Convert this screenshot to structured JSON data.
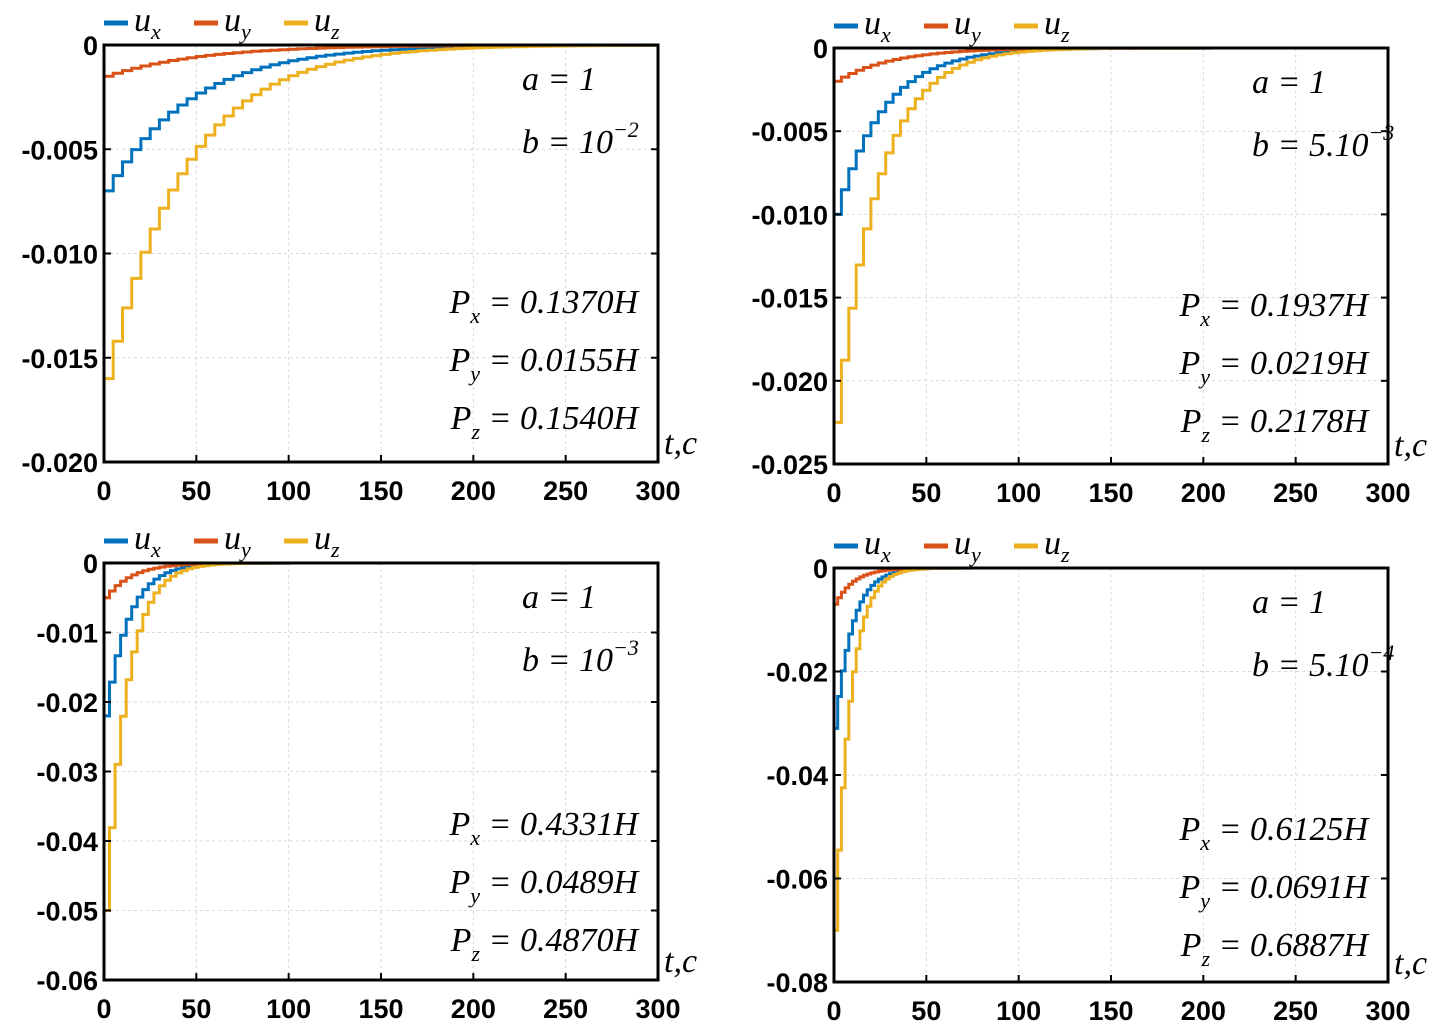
{
  "chart_data": [
    {
      "type": "line",
      "step": true,
      "xlabel": "t,c",
      "ylabel": "",
      "xlim": [
        0,
        300
      ],
      "ylim": [
        -0.02,
        0
      ],
      "x_ticks": [
        "0",
        "50",
        "100",
        "150",
        "200",
        "250",
        "300"
      ],
      "y_ticks": [
        "0",
        "-0.005",
        "-0.010",
        "-0.015",
        "-0.020"
      ],
      "y_tick_values": [
        0,
        -0.005,
        -0.01,
        -0.015,
        -0.02
      ],
      "grid": true,
      "legend_position": "top",
      "legend": [
        {
          "symbol": "u",
          "sub": "x",
          "color": "#0072BD"
        },
        {
          "symbol": "u",
          "sub": "y",
          "color": "#D95319"
        },
        {
          "symbol": "u",
          "sub": "z",
          "color": "#EDB120"
        }
      ],
      "params": {
        "a": "a = 1",
        "b_main": "b = 10",
        "b_exp": "−2"
      },
      "annotations": [
        {
          "main": "P",
          "sub": "x",
          "rest": " = 0.1370H"
        },
        {
          "main": "P",
          "sub": "y",
          "rest": " = 0.0155H"
        },
        {
          "main": "P",
          "sub": "z",
          "rest": " = 0.1540H"
        }
      ],
      "series": [
        {
          "name": "u_x",
          "color": "#0072BD",
          "x0": 0,
          "y0": -0.007,
          "tau": 45,
          "dt": 5
        },
        {
          "name": "u_y",
          "color": "#D95319",
          "x0": 0,
          "y0": -0.0015,
          "tau": 50,
          "dt": 5
        },
        {
          "name": "u_z",
          "color": "#EDB120",
          "x0": 0,
          "y0": -0.016,
          "tau": 42,
          "dt": 5
        }
      ]
    },
    {
      "type": "line",
      "step": true,
      "xlabel": "t,c",
      "ylabel": "",
      "xlim": [
        0,
        300
      ],
      "ylim": [
        -0.025,
        0
      ],
      "x_ticks": [
        "0",
        "50",
        "100",
        "150",
        "200",
        "250",
        "300"
      ],
      "y_ticks": [
        "0",
        "-0.005",
        "-0.010",
        "-0.015",
        "-0.020",
        "-0.025"
      ],
      "y_tick_values": [
        0,
        -0.005,
        -0.01,
        -0.015,
        -0.02,
        -0.025
      ],
      "grid": true,
      "legend_position": "top",
      "legend": [
        {
          "symbol": "u",
          "sub": "x",
          "color": "#0072BD"
        },
        {
          "symbol": "u",
          "sub": "y",
          "color": "#D95319"
        },
        {
          "symbol": "u",
          "sub": "z",
          "color": "#EDB120"
        }
      ],
      "params": {
        "a": "a = 1",
        "b_main": "b = 5.10",
        "b_exp": "−3"
      },
      "annotations": [
        {
          "main": "P",
          "sub": "x",
          "rest": " = 0.1937H"
        },
        {
          "main": "P",
          "sub": "y",
          "rest": " = 0.0219H"
        },
        {
          "main": "P",
          "sub": "z",
          "rest": " = 0.2178H"
        }
      ],
      "series": [
        {
          "name": "u_x",
          "color": "#0072BD",
          "x0": 0,
          "y0": -0.01,
          "tau": 25,
          "dt": 4
        },
        {
          "name": "u_y",
          "color": "#D95319",
          "x0": 0,
          "y0": -0.002,
          "tau": 30,
          "dt": 4
        },
        {
          "name": "u_z",
          "color": "#EDB120",
          "x0": 0,
          "y0": -0.0225,
          "tau": 22,
          "dt": 4
        }
      ]
    },
    {
      "type": "line",
      "step": true,
      "xlabel": "t,c",
      "ylabel": "",
      "xlim": [
        0,
        300
      ],
      "ylim": [
        -0.06,
        0
      ],
      "x_ticks": [
        "0",
        "50",
        "100",
        "150",
        "200",
        "250",
        "300"
      ],
      "y_ticks": [
        "0",
        "-0.01",
        "-0.02",
        "-0.03",
        "-0.04",
        "-0.05",
        "-0.06"
      ],
      "y_tick_values": [
        0,
        -0.01,
        -0.02,
        -0.03,
        -0.04,
        -0.05,
        -0.06
      ],
      "grid": true,
      "legend_position": "top",
      "legend": [
        {
          "symbol": "u",
          "sub": "x",
          "color": "#0072BD"
        },
        {
          "symbol": "u",
          "sub": "y",
          "color": "#D95319"
        },
        {
          "symbol": "u",
          "sub": "z",
          "color": "#EDB120"
        }
      ],
      "params": {
        "a": "a = 1",
        "b_main": "b = 10",
        "b_exp": "−3"
      },
      "annotations": [
        {
          "main": "P",
          "sub": "x",
          "rest": " = 0.4331H"
        },
        {
          "main": "P",
          "sub": "y",
          "rest": " = 0.0489H"
        },
        {
          "main": "P",
          "sub": "z",
          "rest": " = 0.4870H"
        }
      ],
      "series": [
        {
          "name": "u_x",
          "color": "#0072BD",
          "x0": 0,
          "y0": -0.022,
          "tau": 12,
          "dt": 3
        },
        {
          "name": "u_y",
          "color": "#D95319",
          "x0": 0,
          "y0": -0.005,
          "tau": 14,
          "dt": 3
        },
        {
          "name": "u_z",
          "color": "#EDB120",
          "x0": 0,
          "y0": -0.05,
          "tau": 11,
          "dt": 3
        }
      ]
    },
    {
      "type": "line",
      "step": true,
      "xlabel": "t,c",
      "ylabel": "",
      "xlim": [
        0,
        300
      ],
      "ylim": [
        -0.08,
        0
      ],
      "x_ticks": [
        "0",
        "50",
        "100",
        "150",
        "200",
        "250",
        "300"
      ],
      "y_ticks": [
        "0",
        "-0.02",
        "-0.04",
        "-0.06",
        "-0.08"
      ],
      "y_tick_values": [
        0,
        -0.02,
        -0.04,
        -0.06,
        -0.08
      ],
      "grid": true,
      "legend_position": "top",
      "legend": [
        {
          "symbol": "u",
          "sub": "x",
          "color": "#0072BD"
        },
        {
          "symbol": "u",
          "sub": "y",
          "color": "#D95319"
        },
        {
          "symbol": "u",
          "sub": "z",
          "color": "#EDB120"
        }
      ],
      "params": {
        "a": "a = 1",
        "b_main": "b = 5.10",
        "b_exp": "−4"
      },
      "annotations": [
        {
          "main": "P",
          "sub": "x",
          "rest": " = 0.6125H"
        },
        {
          "main": "P",
          "sub": "y",
          "rest": " = 0.0691H"
        },
        {
          "main": "P",
          "sub": "z",
          "rest": " = 0.6887H"
        }
      ],
      "series": [
        {
          "name": "u_x",
          "color": "#0072BD",
          "x0": 0,
          "y0": -0.031,
          "tau": 9,
          "dt": 2
        },
        {
          "name": "u_y",
          "color": "#D95319",
          "x0": 0,
          "y0": -0.007,
          "tau": 10,
          "dt": 2
        },
        {
          "name": "u_z",
          "color": "#EDB120",
          "x0": 0,
          "y0": -0.07,
          "tau": 8,
          "dt": 2
        }
      ]
    }
  ]
}
